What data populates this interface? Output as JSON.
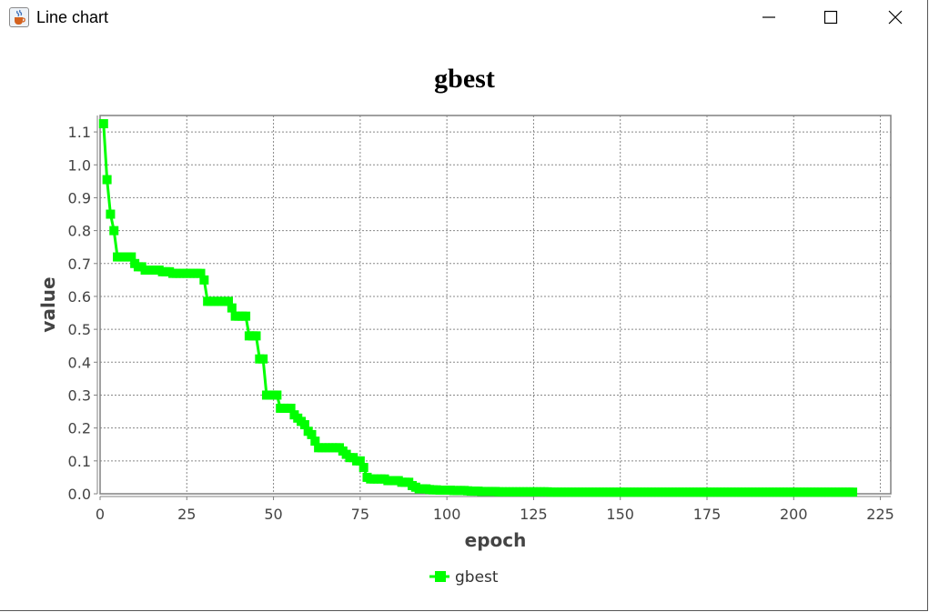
{
  "window": {
    "title": "Line chart",
    "icon": "java-cup-icon",
    "controls": [
      "minimize",
      "maximize",
      "close"
    ]
  },
  "chart_data": {
    "type": "line",
    "title": "gbest",
    "xlabel": "epoch",
    "ylabel": "value",
    "xlim": [
      0,
      228
    ],
    "ylim": [
      0,
      1.15
    ],
    "xticks": [
      0,
      25,
      50,
      75,
      100,
      125,
      150,
      175,
      200,
      225
    ],
    "yticks": [
      0.0,
      0.1,
      0.2,
      0.3,
      0.4,
      0.5,
      0.6,
      0.7,
      0.8,
      0.9,
      1.0,
      1.1
    ],
    "grid": true,
    "legend_position": "bottom",
    "series": [
      {
        "name": "gbest",
        "color": "#00ff00",
        "marker": "square",
        "x": [
          1,
          2,
          3,
          4,
          5,
          6,
          7,
          8,
          9,
          10,
          11,
          12,
          13,
          14,
          15,
          16,
          17,
          18,
          19,
          20,
          21,
          22,
          23,
          24,
          25,
          26,
          27,
          28,
          29,
          30,
          31,
          32,
          33,
          34,
          35,
          36,
          37,
          38,
          39,
          40,
          41,
          42,
          43,
          44,
          45,
          46,
          47,
          48,
          49,
          50,
          51,
          52,
          53,
          54,
          55,
          56,
          57,
          58,
          59,
          60,
          61,
          62,
          63,
          64,
          65,
          66,
          67,
          68,
          69,
          70,
          71,
          72,
          73,
          74,
          75,
          76,
          77,
          78,
          79,
          80,
          81,
          82,
          83,
          84,
          85,
          86,
          87,
          88,
          89,
          90,
          91,
          92,
          93,
          94,
          95,
          96,
          97,
          98,
          99,
          100,
          101,
          102,
          103,
          104,
          105,
          106,
          107,
          108,
          109,
          110,
          111,
          112,
          113,
          114,
          115,
          116,
          117,
          118,
          119,
          120,
          121,
          122,
          123,
          124,
          125,
          126,
          127,
          128,
          129,
          130,
          131,
          132,
          133,
          134,
          135,
          136,
          137,
          138,
          139,
          140,
          141,
          142,
          143,
          144,
          145,
          146,
          147,
          148,
          149,
          150,
          151,
          152,
          153,
          154,
          155,
          156,
          157,
          158,
          159,
          160,
          161,
          162,
          163,
          164,
          165,
          166,
          167,
          168,
          169,
          170,
          171,
          172,
          173,
          174,
          175,
          176,
          177,
          178,
          179,
          180,
          181,
          182,
          183,
          184,
          185,
          186,
          187,
          188,
          189,
          190,
          191,
          192,
          193,
          194,
          195,
          196,
          197,
          198,
          199,
          200,
          201,
          202,
          203,
          204,
          205,
          206,
          207,
          208,
          209,
          210,
          211,
          212,
          213,
          214,
          215,
          216,
          217
        ],
        "y": [
          1.125,
          0.955,
          0.85,
          0.8,
          0.72,
          0.72,
          0.72,
          0.72,
          0.72,
          0.7,
          0.69,
          0.69,
          0.68,
          0.68,
          0.68,
          0.68,
          0.68,
          0.675,
          0.675,
          0.675,
          0.67,
          0.67,
          0.67,
          0.67,
          0.67,
          0.67,
          0.67,
          0.67,
          0.67,
          0.65,
          0.585,
          0.585,
          0.585,
          0.585,
          0.585,
          0.585,
          0.585,
          0.565,
          0.54,
          0.54,
          0.54,
          0.54,
          0.48,
          0.48,
          0.48,
          0.41,
          0.41,
          0.3,
          0.3,
          0.3,
          0.3,
          0.26,
          0.26,
          0.26,
          0.26,
          0.24,
          0.23,
          0.22,
          0.21,
          0.19,
          0.18,
          0.16,
          0.14,
          0.14,
          0.14,
          0.14,
          0.14,
          0.14,
          0.14,
          0.13,
          0.12,
          0.11,
          0.11,
          0.1,
          0.1,
          0.08,
          0.05,
          0.045,
          0.045,
          0.045,
          0.045,
          0.045,
          0.04,
          0.04,
          0.04,
          0.04,
          0.035,
          0.035,
          0.035,
          0.025,
          0.02,
          0.015,
          0.015,
          0.015,
          0.013,
          0.012,
          0.012,
          0.011,
          0.011,
          0.011,
          0.011,
          0.01,
          0.01,
          0.01,
          0.01,
          0.009,
          0.008,
          0.008,
          0.008,
          0.007,
          0.007,
          0.007,
          0.007,
          0.007,
          0.006,
          0.006,
          0.006,
          0.006,
          0.006,
          0.006,
          0.006,
          0.006,
          0.006,
          0.006,
          0.006,
          0.006,
          0.006,
          0.006,
          0.006,
          0.005,
          0.005,
          0.005,
          0.005,
          0.005,
          0.005,
          0.005,
          0.005,
          0.005,
          0.005,
          0.005,
          0.005,
          0.005,
          0.005,
          0.005,
          0.005,
          0.005,
          0.005,
          0.005,
          0.005,
          0.005,
          0.005,
          0.005,
          0.005,
          0.005,
          0.005,
          0.005,
          0.005,
          0.005,
          0.005,
          0.005,
          0.005,
          0.005,
          0.005,
          0.005,
          0.005,
          0.005,
          0.005,
          0.005,
          0.005,
          0.005,
          0.005,
          0.005,
          0.005,
          0.005,
          0.005,
          0.005,
          0.005,
          0.005,
          0.005,
          0.005,
          0.005,
          0.005,
          0.005,
          0.005,
          0.005,
          0.005,
          0.005,
          0.005,
          0.005,
          0.005,
          0.005,
          0.005,
          0.005,
          0.005,
          0.005,
          0.005,
          0.005,
          0.005,
          0.005,
          0.005,
          0.005,
          0.005,
          0.005,
          0.005,
          0.005,
          0.005,
          0.005,
          0.005,
          0.005,
          0.005,
          0.005,
          0.005,
          0.005,
          0.005,
          0.005,
          0.005,
          0.005
        ]
      }
    ]
  }
}
